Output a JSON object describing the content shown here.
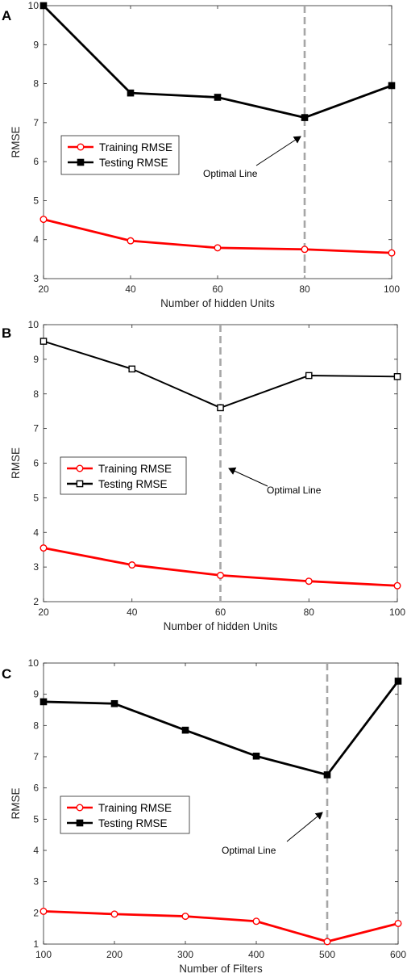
{
  "colors": {
    "training": "#ff0000",
    "testing": "#000000",
    "optimal_line": "#a6a6a6",
    "axis": "#262626"
  },
  "chart_data": [
    {
      "type": "line",
      "panel_label": "A",
      "xlabel": "Number of hidden Units",
      "ylabel": "RMSE",
      "x": [
        20,
        40,
        60,
        80,
        100
      ],
      "xlim": [
        20,
        100
      ],
      "ylim": [
        3,
        10
      ],
      "xticks": [
        "20",
        "40",
        "60",
        "80",
        "100"
      ],
      "yticks": [
        "3",
        "4",
        "5",
        "6",
        "7",
        "8",
        "9",
        "10"
      ],
      "series": [
        {
          "name": "Training RMSE",
          "values": [
            4.52,
            3.97,
            3.79,
            3.75,
            3.66
          ],
          "marker": "circle"
        },
        {
          "name": "Testing RMSE",
          "values": [
            10.0,
            7.76,
            7.65,
            7.13,
            7.95
          ],
          "marker": "square"
        }
      ],
      "optimal_x": 80,
      "annotation": "Optimal Line",
      "legend_position": "left"
    },
    {
      "type": "line",
      "panel_label": "B",
      "xlabel": "Number of hidden Units",
      "ylabel": "RMSE",
      "x": [
        20,
        40,
        60,
        80,
        100
      ],
      "xlim": [
        20,
        100
      ],
      "ylim": [
        2,
        10
      ],
      "xticks": [
        "20",
        "40",
        "60",
        "80",
        "100"
      ],
      "yticks": [
        "2",
        "3",
        "4",
        "5",
        "6",
        "7",
        "8",
        "9",
        "10"
      ],
      "series": [
        {
          "name": "Training RMSE",
          "values": [
            3.55,
            3.06,
            2.76,
            2.59,
            2.46
          ],
          "marker": "circle"
        },
        {
          "name": "Testing RMSE",
          "values": [
            9.52,
            8.72,
            7.6,
            8.53,
            8.5
          ],
          "marker": "square"
        }
      ],
      "optimal_x": 60,
      "annotation": "Optimal Line",
      "legend_position": "left"
    },
    {
      "type": "line",
      "panel_label": "C",
      "xlabel": "Number of Filters",
      "ylabel": "RMSE",
      "x": [
        100,
        200,
        300,
        400,
        500,
        600
      ],
      "xlim": [
        100,
        600
      ],
      "ylim": [
        1,
        10
      ],
      "xticks": [
        "100",
        "200",
        "300",
        "400",
        "500",
        "600"
      ],
      "yticks": [
        "1",
        "2",
        "3",
        "4",
        "5",
        "6",
        "7",
        "8",
        "9",
        "10"
      ],
      "series": [
        {
          "name": "Training RMSE",
          "values": [
            2.05,
            1.96,
            1.89,
            1.73,
            1.08,
            1.66
          ],
          "marker": "circle"
        },
        {
          "name": "Testing RMSE",
          "values": [
            8.76,
            8.7,
            7.85,
            7.02,
            6.42,
            9.42
          ],
          "marker": "square"
        }
      ],
      "optimal_x": 500,
      "annotation": "Optimal Line",
      "legend_position": "left"
    }
  ]
}
